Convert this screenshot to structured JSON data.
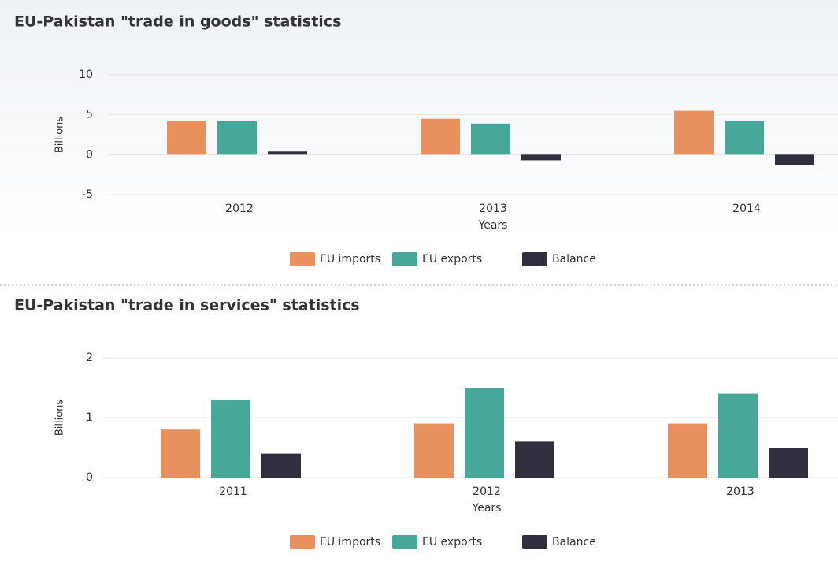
{
  "chart_data": [
    {
      "type": "bar",
      "title": "EU-Pakistan \"trade in goods\" statistics",
      "x_label": "Years",
      "y_label": "Billions",
      "categories": [
        "2012",
        "2013",
        "2014"
      ],
      "series": [
        {
          "name": "EU imports",
          "color": "#e8915f",
          "values": [
            4.2,
            4.5,
            5.5
          ]
        },
        {
          "name": "EU exports",
          "color": "#47a89a",
          "values": [
            4.2,
            3.9,
            4.2
          ]
        },
        {
          "name": "Balance",
          "color": "#302f3f",
          "values": [
            0.4,
            -0.7,
            -1.3
          ]
        }
      ],
      "ylim": [
        -5,
        10
      ],
      "yticks": [
        -5,
        0,
        5,
        10
      ],
      "grid": true,
      "legend": "bottom"
    },
    {
      "type": "bar",
      "title": "EU-Pakistan \"trade in services\" statistics",
      "x_label": "Years",
      "y_label": "Billions",
      "categories": [
        "2011",
        "2012",
        "2013"
      ],
      "series": [
        {
          "name": "EU imports",
          "color": "#e8915f",
          "values": [
            0.8,
            0.9,
            0.9
          ]
        },
        {
          "name": "EU exports",
          "color": "#47a89a",
          "values": [
            1.3,
            1.5,
            1.4
          ]
        },
        {
          "name": "Balance",
          "color": "#302f3f",
          "values": [
            0.4,
            0.6,
            0.5
          ]
        }
      ],
      "ylim": [
        0,
        2
      ],
      "yticks": [
        0,
        1,
        2
      ],
      "grid": true,
      "legend": "bottom"
    }
  ]
}
